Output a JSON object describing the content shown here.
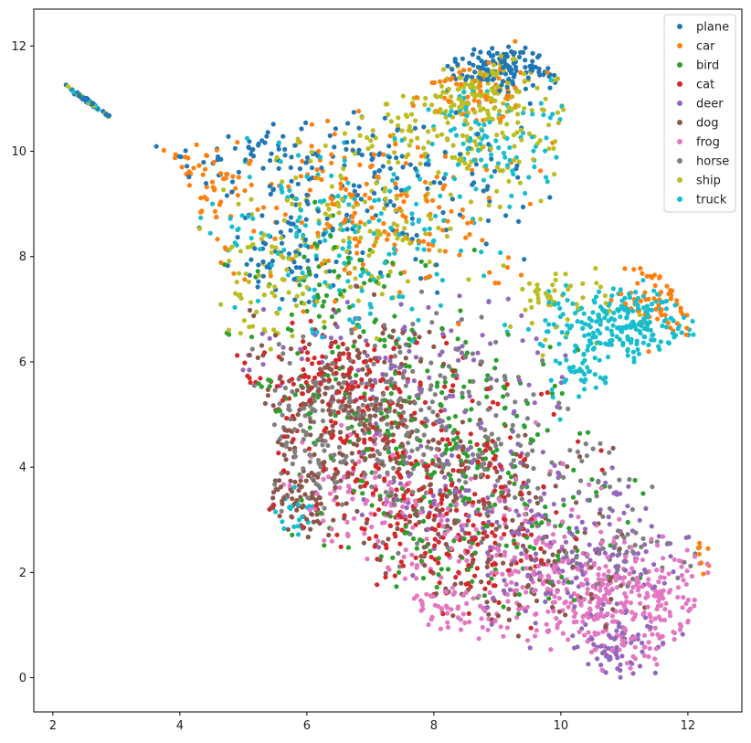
{
  "chart_data": {
    "type": "scatter",
    "title": "",
    "xlabel": "",
    "ylabel": "",
    "xlim": [
      1.7,
      12.85
    ],
    "ylim": [
      -0.65,
      12.7
    ],
    "x_ticks": [
      2,
      4,
      6,
      8,
      10,
      12
    ],
    "y_ticks": [
      0,
      2,
      4,
      6,
      8,
      10,
      12
    ],
    "grid": false,
    "legend_position": "top-right",
    "series": [
      {
        "name": "plane",
        "color": "#1f77b4",
        "density_regions": [
          {
            "cx": 2.5,
            "cy": 11.0,
            "rx": 0.3,
            "ry": 0.2,
            "n": 35
          },
          {
            "cx": 5.3,
            "cy": 10.0,
            "rx": 1.2,
            "ry": 0.5,
            "n": 60
          },
          {
            "cx": 9.1,
            "cy": 11.6,
            "rx": 0.9,
            "ry": 0.4,
            "n": 120
          },
          {
            "cx": 7.5,
            "cy": 9.3,
            "rx": 2.2,
            "ry": 1.3,
            "n": 140
          },
          {
            "cx": 5.6,
            "cy": 8.0,
            "rx": 0.9,
            "ry": 0.8,
            "n": 60
          }
        ]
      },
      {
        "name": "car",
        "color": "#ff7f0e",
        "density_regions": [
          {
            "cx": 4.5,
            "cy": 9.5,
            "rx": 0.6,
            "ry": 0.6,
            "n": 40
          },
          {
            "cx": 7.0,
            "cy": 9.0,
            "rx": 2.3,
            "ry": 1.5,
            "n": 180
          },
          {
            "cx": 11.5,
            "cy": 7.2,
            "rx": 0.5,
            "ry": 0.6,
            "n": 60
          },
          {
            "cx": 8.7,
            "cy": 11.2,
            "rx": 0.8,
            "ry": 0.5,
            "n": 60
          },
          {
            "cx": 12.2,
            "cy": 2.3,
            "rx": 0.2,
            "ry": 0.3,
            "n": 8
          }
        ]
      },
      {
        "name": "bird",
        "color": "#2ca02c",
        "density_regions": [
          {
            "cx": 7.5,
            "cy": 5.0,
            "rx": 2.3,
            "ry": 1.8,
            "n": 180
          },
          {
            "cx": 9.0,
            "cy": 3.0,
            "rx": 2.5,
            "ry": 1.6,
            "n": 150
          },
          {
            "cx": 6.5,
            "cy": 7.5,
            "rx": 1.3,
            "ry": 1.0,
            "n": 60
          }
        ]
      },
      {
        "name": "cat",
        "color": "#d62728",
        "density_regions": [
          {
            "cx": 7.5,
            "cy": 4.0,
            "rx": 2.0,
            "ry": 1.6,
            "n": 220
          },
          {
            "cx": 6.3,
            "cy": 5.8,
            "rx": 1.3,
            "ry": 0.8,
            "n": 110
          },
          {
            "cx": 8.5,
            "cy": 2.5,
            "rx": 1.5,
            "ry": 1.0,
            "n": 100
          }
        ]
      },
      {
        "name": "deer",
        "color": "#9467bd",
        "density_regions": [
          {
            "cx": 10.3,
            "cy": 2.2,
            "rx": 1.5,
            "ry": 1.3,
            "n": 170
          },
          {
            "cx": 11.0,
            "cy": 0.5,
            "rx": 0.9,
            "ry": 0.5,
            "n": 60
          },
          {
            "cx": 7.5,
            "cy": 6.0,
            "rx": 2.0,
            "ry": 1.2,
            "n": 100
          },
          {
            "cx": 8.5,
            "cy": 3.5,
            "rx": 1.8,
            "ry": 1.2,
            "n": 90
          }
        ]
      },
      {
        "name": "dog",
        "color": "#8c564b",
        "density_regions": [
          {
            "cx": 6.5,
            "cy": 5.2,
            "rx": 1.3,
            "ry": 1.4,
            "n": 200
          },
          {
            "cx": 7.8,
            "cy": 3.5,
            "rx": 1.8,
            "ry": 1.2,
            "n": 150
          },
          {
            "cx": 5.8,
            "cy": 3.3,
            "rx": 0.6,
            "ry": 0.7,
            "n": 60
          },
          {
            "cx": 9.5,
            "cy": 2.0,
            "rx": 1.5,
            "ry": 1.0,
            "n": 80
          }
        ]
      },
      {
        "name": "frog",
        "color": "#e377c2",
        "density_regions": [
          {
            "cx": 10.8,
            "cy": 1.4,
            "rx": 1.4,
            "ry": 1.0,
            "n": 330
          },
          {
            "cx": 9.0,
            "cy": 2.3,
            "rx": 1.8,
            "ry": 1.3,
            "n": 150
          },
          {
            "cx": 7.0,
            "cy": 3.6,
            "rx": 1.2,
            "ry": 1.0,
            "n": 80
          },
          {
            "cx": 8.0,
            "cy": 1.2,
            "rx": 0.8,
            "ry": 0.4,
            "n": 40
          }
        ]
      },
      {
        "name": "horse",
        "color": "#7f7f7f",
        "density_regions": [
          {
            "cx": 7.6,
            "cy": 5.0,
            "rx": 1.6,
            "ry": 1.5,
            "n": 220
          },
          {
            "cx": 6.0,
            "cy": 4.5,
            "rx": 0.8,
            "ry": 1.4,
            "n": 80
          },
          {
            "cx": 9.5,
            "cy": 4.0,
            "rx": 1.5,
            "ry": 1.0,
            "n": 80
          },
          {
            "cx": 11.0,
            "cy": 2.4,
            "rx": 1.0,
            "ry": 0.6,
            "n": 40
          }
        ]
      },
      {
        "name": "ship",
        "color": "#bcbd22",
        "density_regions": [
          {
            "cx": 8.5,
            "cy": 10.5,
            "rx": 1.7,
            "ry": 1.1,
            "n": 180
          },
          {
            "cx": 6.5,
            "cy": 8.5,
            "rx": 1.5,
            "ry": 1.2,
            "n": 150
          },
          {
            "cx": 5.3,
            "cy": 7.2,
            "rx": 0.5,
            "ry": 0.8,
            "n": 40
          },
          {
            "cx": 10.0,
            "cy": 7.2,
            "rx": 0.8,
            "ry": 0.7,
            "n": 50
          },
          {
            "cx": 8.8,
            "cy": 11.2,
            "rx": 0.7,
            "ry": 0.4,
            "n": 80
          }
        ]
      },
      {
        "name": "truck",
        "color": "#17becf",
        "density_regions": [
          {
            "cx": 11.0,
            "cy": 6.7,
            "rx": 1.1,
            "ry": 0.6,
            "n": 220
          },
          {
            "cx": 6.8,
            "cy": 8.5,
            "rx": 2.0,
            "ry": 1.6,
            "n": 180
          },
          {
            "cx": 9.0,
            "cy": 10.3,
            "rx": 1.2,
            "ry": 0.9,
            "n": 80
          },
          {
            "cx": 10.3,
            "cy": 5.8,
            "rx": 0.5,
            "ry": 0.5,
            "n": 40
          },
          {
            "cx": 5.8,
            "cy": 3.0,
            "rx": 0.3,
            "ry": 0.4,
            "n": 20
          }
        ]
      }
    ]
  }
}
